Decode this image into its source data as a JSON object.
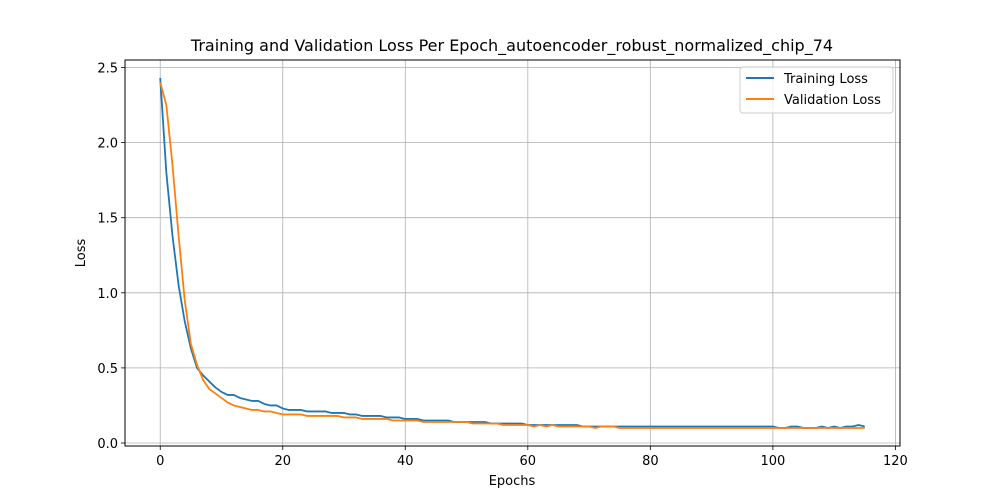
{
  "chart_data": {
    "type": "line",
    "title": "Training and Validation Loss Per Epoch_autoencoder_robust_normalized_chip_74",
    "xlabel": "Epochs",
    "ylabel": "Loss",
    "xlim": [
      -5.75,
      120.75
    ],
    "ylim": [
      -0.02,
      2.55
    ],
    "xticks": [
      0,
      20,
      40,
      60,
      80,
      100,
      120
    ],
    "yticks": [
      0.0,
      0.5,
      1.0,
      1.5,
      2.0,
      2.5
    ],
    "xtick_labels": [
      "0",
      "20",
      "40",
      "60",
      "80",
      "100",
      "120"
    ],
    "ytick_labels": [
      "0.0",
      "0.5",
      "1.0",
      "1.5",
      "2.0",
      "2.5"
    ],
    "grid": true,
    "legend_position": "top-right",
    "series": [
      {
        "name": "Training Loss",
        "color": "#1f77b4",
        "values": [
          2.43,
          1.8,
          1.38,
          1.05,
          0.81,
          0.63,
          0.5,
          0.45,
          0.41,
          0.37,
          0.34,
          0.32,
          0.32,
          0.3,
          0.29,
          0.28,
          0.28,
          0.26,
          0.25,
          0.25,
          0.23,
          0.22,
          0.22,
          0.22,
          0.21,
          0.21,
          0.21,
          0.21,
          0.2,
          0.2,
          0.2,
          0.19,
          0.19,
          0.18,
          0.18,
          0.18,
          0.18,
          0.17,
          0.17,
          0.17,
          0.16,
          0.16,
          0.16,
          0.15,
          0.15,
          0.15,
          0.15,
          0.15,
          0.14,
          0.14,
          0.14,
          0.14,
          0.14,
          0.14,
          0.13,
          0.13,
          0.13,
          0.13,
          0.13,
          0.13,
          0.12,
          0.12,
          0.12,
          0.12,
          0.12,
          0.12,
          0.12,
          0.12,
          0.12,
          0.11,
          0.11,
          0.11,
          0.11,
          0.11,
          0.11,
          0.11,
          0.11,
          0.11,
          0.11,
          0.11,
          0.11,
          0.11,
          0.11,
          0.11,
          0.11,
          0.11,
          0.11,
          0.11,
          0.11,
          0.11,
          0.11,
          0.11,
          0.11,
          0.11,
          0.11,
          0.11,
          0.11,
          0.11,
          0.11,
          0.11,
          0.11,
          0.1,
          0.1,
          0.11,
          0.11,
          0.1,
          0.1,
          0.1,
          0.11,
          0.1,
          0.11,
          0.1,
          0.11,
          0.11,
          0.12,
          0.11
        ]
      },
      {
        "name": "Validation Loss",
        "color": "#ff7f0e",
        "values": [
          2.4,
          2.25,
          1.85,
          1.38,
          0.95,
          0.66,
          0.52,
          0.42,
          0.36,
          0.33,
          0.3,
          0.27,
          0.25,
          0.24,
          0.23,
          0.22,
          0.22,
          0.21,
          0.21,
          0.2,
          0.19,
          0.19,
          0.19,
          0.19,
          0.18,
          0.18,
          0.18,
          0.18,
          0.18,
          0.18,
          0.17,
          0.17,
          0.17,
          0.16,
          0.16,
          0.16,
          0.16,
          0.16,
          0.15,
          0.15,
          0.15,
          0.15,
          0.15,
          0.14,
          0.14,
          0.14,
          0.14,
          0.14,
          0.14,
          0.14,
          0.14,
          0.13,
          0.13,
          0.13,
          0.13,
          0.13,
          0.12,
          0.12,
          0.12,
          0.12,
          0.12,
          0.11,
          0.12,
          0.11,
          0.12,
          0.11,
          0.11,
          0.11,
          0.11,
          0.11,
          0.11,
          0.1,
          0.11,
          0.11,
          0.11,
          0.1,
          0.1,
          0.1,
          0.1,
          0.1,
          0.1,
          0.1,
          0.1,
          0.1,
          0.1,
          0.1,
          0.1,
          0.1,
          0.1,
          0.1,
          0.1,
          0.1,
          0.1,
          0.1,
          0.1,
          0.1,
          0.1,
          0.1,
          0.1,
          0.1,
          0.1,
          0.1,
          0.1,
          0.1,
          0.1,
          0.1,
          0.1,
          0.1,
          0.1,
          0.1,
          0.1,
          0.1,
          0.1,
          0.1,
          0.1,
          0.1
        ]
      }
    ]
  }
}
